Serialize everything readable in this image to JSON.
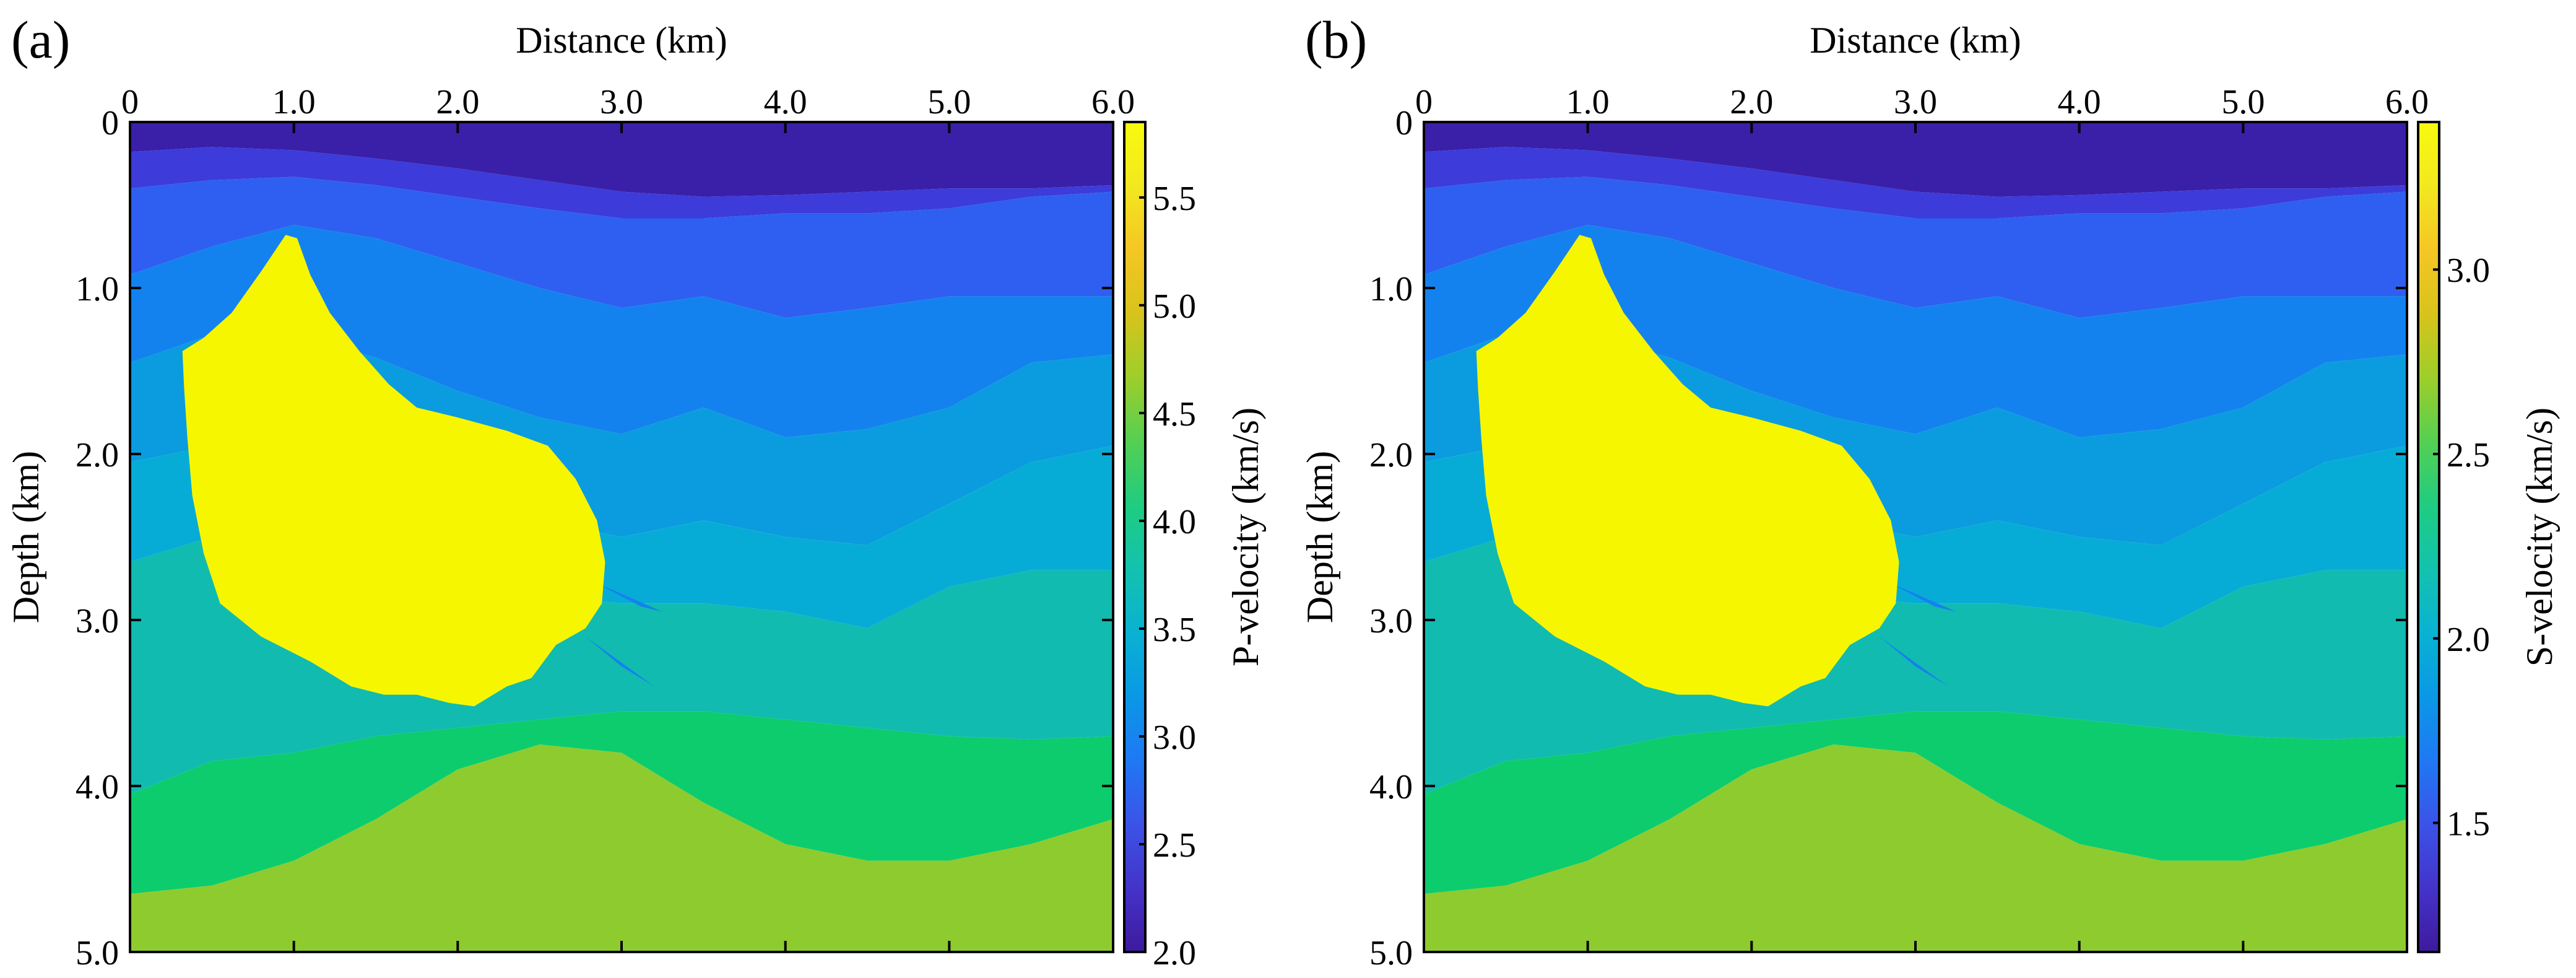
{
  "chart_data": [
    {
      "type": "heatmap",
      "panel_label": "(a)",
      "title": "",
      "xlabel": "Distance (km)",
      "ylabel": "Depth (km)",
      "xlim": [
        0,
        6.0
      ],
      "ylim": [
        0,
        5.0
      ],
      "x_ticks": [
        "0",
        "1.0",
        "2.0",
        "3.0",
        "4.0",
        "5.0",
        "6.0"
      ],
      "y_ticks": [
        "0",
        "1.0",
        "2.0",
        "3.0",
        "4.0",
        "5.0"
      ],
      "colorbar": {
        "label": "P-velocity (km/s)",
        "range": [
          2.0,
          5.85
        ],
        "ticks": [
          "2.0",
          "2.5",
          "3.0",
          "3.5",
          "4.0",
          "4.5",
          "5.0",
          "5.5"
        ],
        "tick_values": [
          2.0,
          2.5,
          3.0,
          3.5,
          4.0,
          4.5,
          5.0,
          5.5
        ]
      }
    },
    {
      "type": "heatmap",
      "panel_label": "(b)",
      "title": "",
      "xlabel": "Distance (km)",
      "ylabel": "Depth (km)",
      "xlim": [
        0,
        6.0
      ],
      "ylim": [
        0,
        5.0
      ],
      "x_ticks": [
        "0",
        "1.0",
        "2.0",
        "3.0",
        "4.0",
        "5.0",
        "6.0"
      ],
      "y_ticks": [
        "0",
        "1.0",
        "2.0",
        "3.0",
        "4.0",
        "5.0"
      ],
      "colorbar": {
        "label": "S-velocity (km/s)",
        "range": [
          1.15,
          3.4
        ],
        "ticks": [
          "1.5",
          "2.0",
          "2.5",
          "3.0"
        ],
        "tick_values": [
          1.5,
          2.0,
          2.5,
          3.0
        ]
      }
    }
  ],
  "model": {
    "layers": [
      {
        "name": "layer-1",
        "color": "#3a1fa8"
      },
      {
        "name": "layer-2",
        "color": "#3d3bd9"
      },
      {
        "name": "layer-3",
        "color": "#2f5ff0"
      },
      {
        "name": "layer-4",
        "color": "#1482ee"
      },
      {
        "name": "layer-5",
        "color": "#0b9cdf"
      },
      {
        "name": "layer-6",
        "color": "#07acd6"
      },
      {
        "name": "layer-7",
        "color": "#11bbb0"
      },
      {
        "name": "layer-8",
        "color": "#0ccc6e"
      },
      {
        "name": "layer-9",
        "color": "#8ecb2f"
      }
    ],
    "salt_color": "#f6f600",
    "colormap": [
      "#3e1a9e",
      "#4433c9",
      "#3b53e8",
      "#1f78f4",
      "#0a98e6",
      "#0ab2d2",
      "#13c2ae",
      "#1fcc80",
      "#55cf52",
      "#9ece2a",
      "#d8c31c",
      "#f5c624",
      "#f2e81f",
      "#f8fa0e"
    ]
  }
}
